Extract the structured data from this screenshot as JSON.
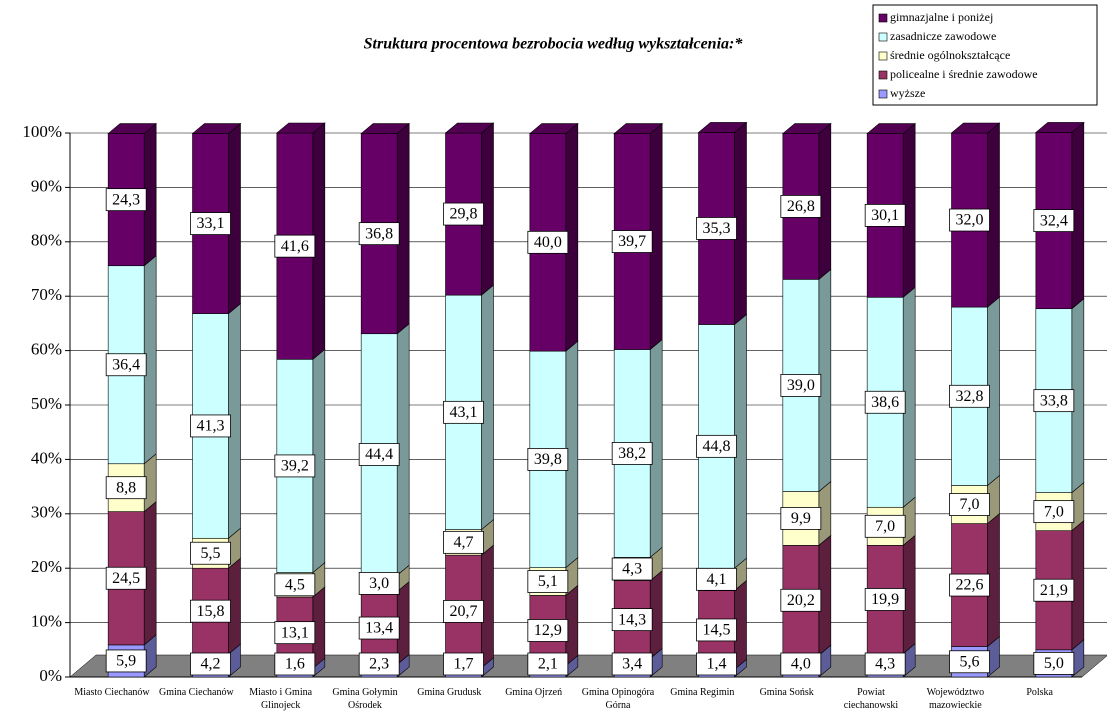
{
  "chart_data": {
    "type": "bar3d_stacked",
    "title": "Struktura procentowa bezrobocia według wykształcenia:*",
    "categories": [
      "Miasto Ciechanów",
      "Gmina Ciechanów",
      "Miasto i Gmina Glinojeck",
      "Gmina Gołymin Ośrodek",
      "Gmina Grudusk",
      "Gmina Ojrzeń",
      "Gmina Opinogóra Górna",
      "Gmina Regimin",
      "Gmina Sońsk",
      "Powiat ciechanowski",
      "Województwo mazowieckie",
      "Polska"
    ],
    "series": [
      {
        "name": "wyższe",
        "color": "#9999ff",
        "values": [
          5.9,
          4.2,
          1.6,
          2.3,
          1.7,
          2.1,
          3.4,
          1.4,
          4.0,
          4.3,
          5.6,
          5.0
        ],
        "value_labels": [
          "5,9",
          "4,2",
          "1,6",
          "2,3",
          "1,7",
          "2,1",
          "3,4",
          "1,4",
          "4,0",
          "4,3",
          "5,6",
          "5,0"
        ]
      },
      {
        "name": "policealne i średnie zawodowe",
        "color": "#993366",
        "values": [
          24.5,
          15.8,
          13.1,
          13.4,
          20.7,
          12.9,
          14.3,
          14.5,
          20.2,
          19.9,
          22.6,
          21.9
        ],
        "value_labels": [
          "24,5",
          "15,8",
          "13,1",
          "13,4",
          "20,7",
          "12,9",
          "14,3",
          "14,5",
          "20,2",
          "19,9",
          "22,6",
          "21,9"
        ]
      },
      {
        "name": "średnie ogólnokształcące",
        "color": "#ffffcc",
        "values": [
          8.8,
          5.5,
          4.5,
          3.0,
          4.7,
          5.1,
          4.3,
          4.1,
          9.9,
          7.0,
          7.0,
          7.0
        ],
        "value_labels": [
          "8,8",
          "5,5",
          "4,5",
          "3,0",
          "4,7",
          "5,1",
          "4,3",
          "4,1",
          "9,9",
          "7,0",
          "7,0",
          "7,0"
        ]
      },
      {
        "name": "zasadnicze zawodowe",
        "color": "#ccffff",
        "values": [
          36.4,
          41.3,
          39.2,
          44.4,
          43.1,
          39.8,
          38.2,
          44.8,
          39.0,
          38.6,
          32.8,
          33.8
        ],
        "value_labels": [
          "36,4",
          "41,3",
          "39,2",
          "44,4",
          "43,1",
          "39,8",
          "38,2",
          "44,8",
          "39,0",
          "38,6",
          "32,8",
          "33,8"
        ]
      },
      {
        "name": "gimnazjalne i poniżej",
        "color": "#660066",
        "values": [
          24.3,
          33.1,
          41.6,
          36.8,
          29.8,
          40.0,
          39.7,
          35.3,
          26.8,
          30.1,
          32.0,
          32.4
        ],
        "value_labels": [
          "24,3",
          "33,1",
          "41,6",
          "36,8",
          "29,8",
          "40,0",
          "39,7",
          "35,3",
          "26,8",
          "30,1",
          "32,0",
          "32,4"
        ]
      }
    ],
    "ylim": [
      0,
      100
    ],
    "yticks": [
      {
        "value": 0,
        "label": "0%"
      },
      {
        "value": 10,
        "label": "10%"
      },
      {
        "value": 20,
        "label": "20%"
      },
      {
        "value": 30,
        "label": "30%"
      },
      {
        "value": 40,
        "label": "40%"
      },
      {
        "value": 50,
        "label": "50%"
      },
      {
        "value": 60,
        "label": "60%"
      },
      {
        "value": 70,
        "label": "70%"
      },
      {
        "value": 80,
        "label": "80%"
      },
      {
        "value": 90,
        "label": "90%"
      },
      {
        "value": 100,
        "label": "100%"
      }
    ],
    "grid": true,
    "legend": "top-right"
  }
}
